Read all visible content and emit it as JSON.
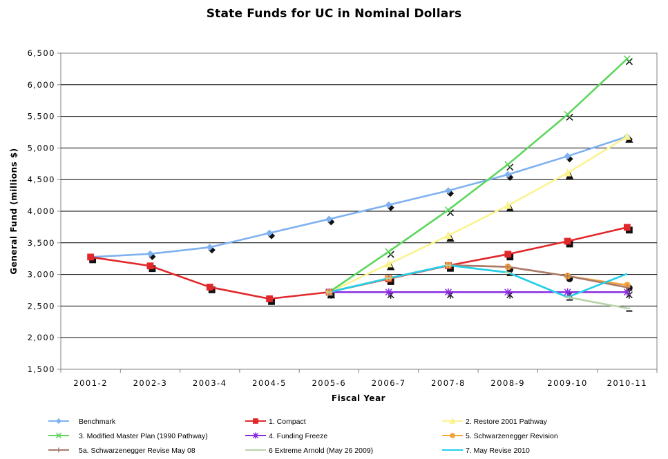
{
  "chart_data": {
    "type": "line",
    "title": "State Funds for UC in Nominal Dollars",
    "xlabel": "Fiscal Year",
    "ylabel": "General Fund (millions $)",
    "ylim": [
      1500,
      6500
    ],
    "yticks": [
      1500,
      2000,
      2500,
      3000,
      3500,
      4000,
      4500,
      5000,
      5500,
      6000,
      6500
    ],
    "ytick_labels": [
      "1,500",
      "2,000",
      "2,500",
      "3,000",
      "3,500",
      "4,000",
      "4,500",
      "5,000",
      "5,500",
      "6,000",
      "6,500"
    ],
    "categories": [
      "2001-2",
      "2002-3",
      "2003-4",
      "2004-5",
      "2005-6",
      "2006-7",
      "2007-8",
      "2008-9",
      "2009-10",
      "2010-11"
    ],
    "grid": "horizontal",
    "legend_position": "bottom",
    "series": [
      {
        "name": "Benchmark",
        "color": "#7EB1F0",
        "marker": "diamond",
        "values": [
          3275,
          3325,
          3430,
          3655,
          3875,
          4100,
          4325,
          4580,
          4870,
          5180
        ]
      },
      {
        "name": "1. Compact",
        "color": "#E2272B",
        "marker": "square",
        "values": [
          3275,
          3135,
          2800,
          2615,
          2720,
          2930,
          3140,
          3320,
          3525,
          3745
        ]
      },
      {
        "name": "2. Restore 2001 Pathway",
        "color": "#FBF38F",
        "marker": "triangle",
        "values": [
          null,
          null,
          null,
          null,
          2720,
          3165,
          3615,
          4090,
          4605,
          5180
        ]
      },
      {
        "name": "3. Modified Master Plan (1990 Pathway)",
        "color": "#5DD65D",
        "marker": "x",
        "values": [
          null,
          null,
          null,
          null,
          2720,
          3360,
          4020,
          4740,
          5530,
          6410
        ]
      },
      {
        "name": "4. Funding Freeze",
        "color": "#8A2BE2",
        "marker": "star",
        "values": [
          null,
          null,
          null,
          null,
          2720,
          2720,
          2720,
          2720,
          2720,
          2720
        ]
      },
      {
        "name": "5. Schwarzenegger Revision",
        "color": "#F2A33A",
        "marker": "circle",
        "values": [
          null,
          null,
          null,
          null,
          2720,
          2940,
          3145,
          3120,
          2975,
          2830
        ]
      },
      {
        "name": "5a. Schwarzenegger Revise May 08",
        "color": "#A97A6E",
        "marker": "plus",
        "values": [
          null,
          null,
          null,
          null,
          2720,
          2940,
          3145,
          3120,
          2975,
          2795
        ]
      },
      {
        "name": "6 Extreme Arnold (May 26 2009)",
        "color": "#B8D4A8",
        "marker": "dash",
        "values": [
          null,
          null,
          null,
          null,
          2720,
          2940,
          3145,
          3030,
          2640,
          2465
        ]
      },
      {
        "name": "7. May Revise 2010",
        "color": "#22CFEA",
        "marker": "none",
        "values": [
          null,
          null,
          null,
          null,
          2720,
          2940,
          3145,
          3030,
          2640,
          3010
        ]
      }
    ]
  }
}
